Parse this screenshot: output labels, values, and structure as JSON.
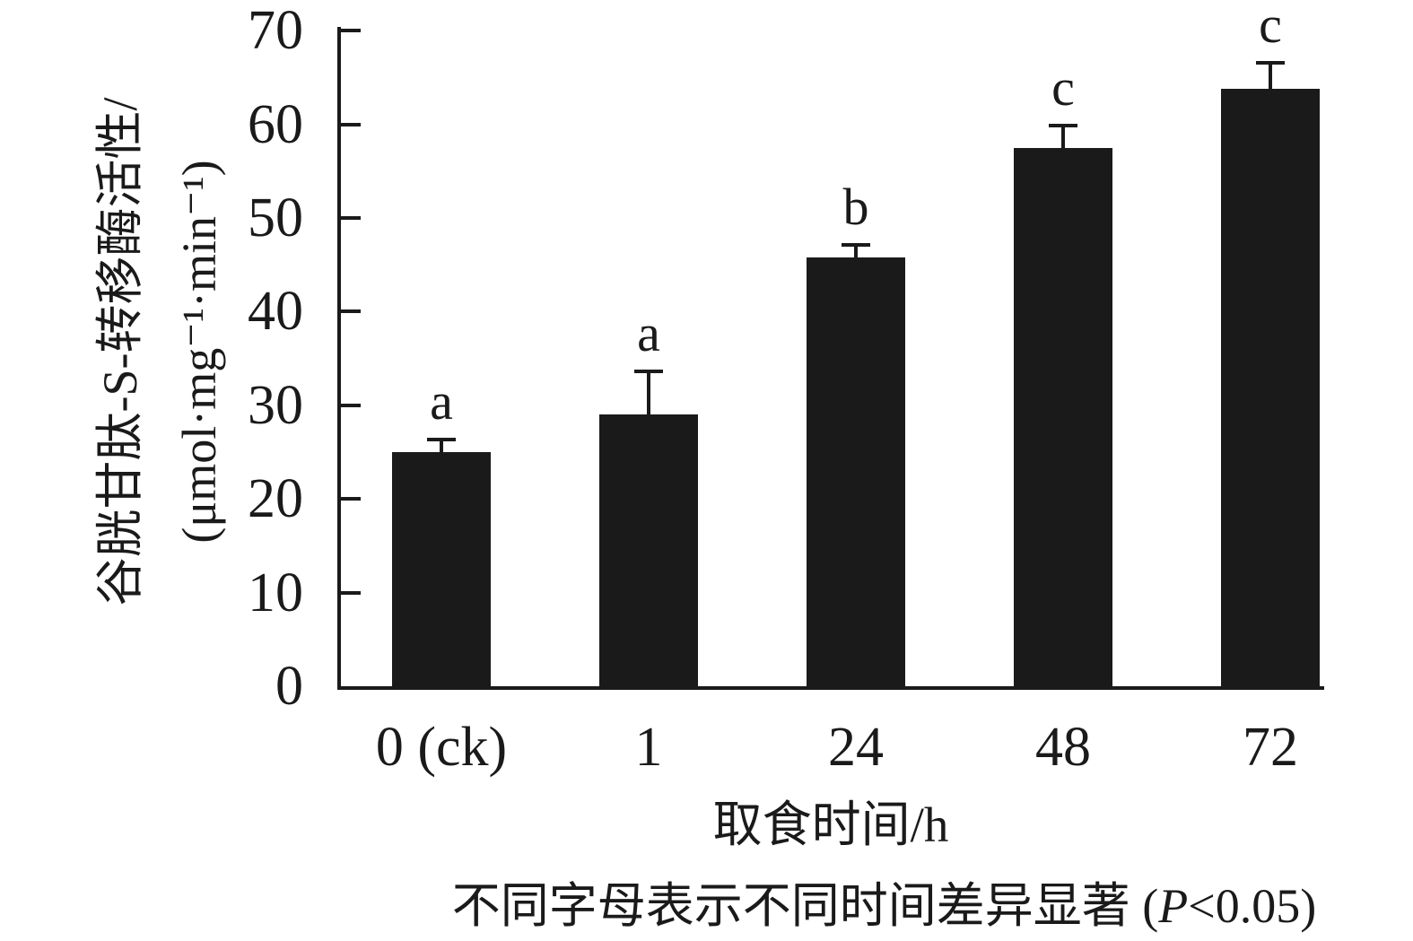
{
  "chart_data": {
    "type": "bar",
    "categories": [
      "0 (ck)",
      "1",
      "24",
      "48",
      "72"
    ],
    "values": [
      25.0,
      29.0,
      45.8,
      57.5,
      63.8
    ],
    "errors": [
      1.5,
      4.8,
      1.5,
      2.6,
      3.0
    ],
    "sig_letters": [
      "a",
      "a",
      "b",
      "c",
      "c"
    ],
    "yticks": [
      0,
      10,
      20,
      30,
      40,
      50,
      60,
      70
    ],
    "ylim": [
      0,
      70
    ],
    "grid": false,
    "legend": "none",
    "bar_color": "#1b1a1a",
    "axis_color": "#1b1a1a",
    "title": "",
    "xlabel": "取食时间/h",
    "ylabel_line1": "谷胱甘肽-S-转移酶活性/",
    "ylabel_line2": "(μmol·mg⁻¹·min⁻¹)",
    "caption_prefix": "不同字母表示不同时间差异显著 (",
    "caption_italic": "P",
    "caption_suffix": "<0.05)"
  }
}
